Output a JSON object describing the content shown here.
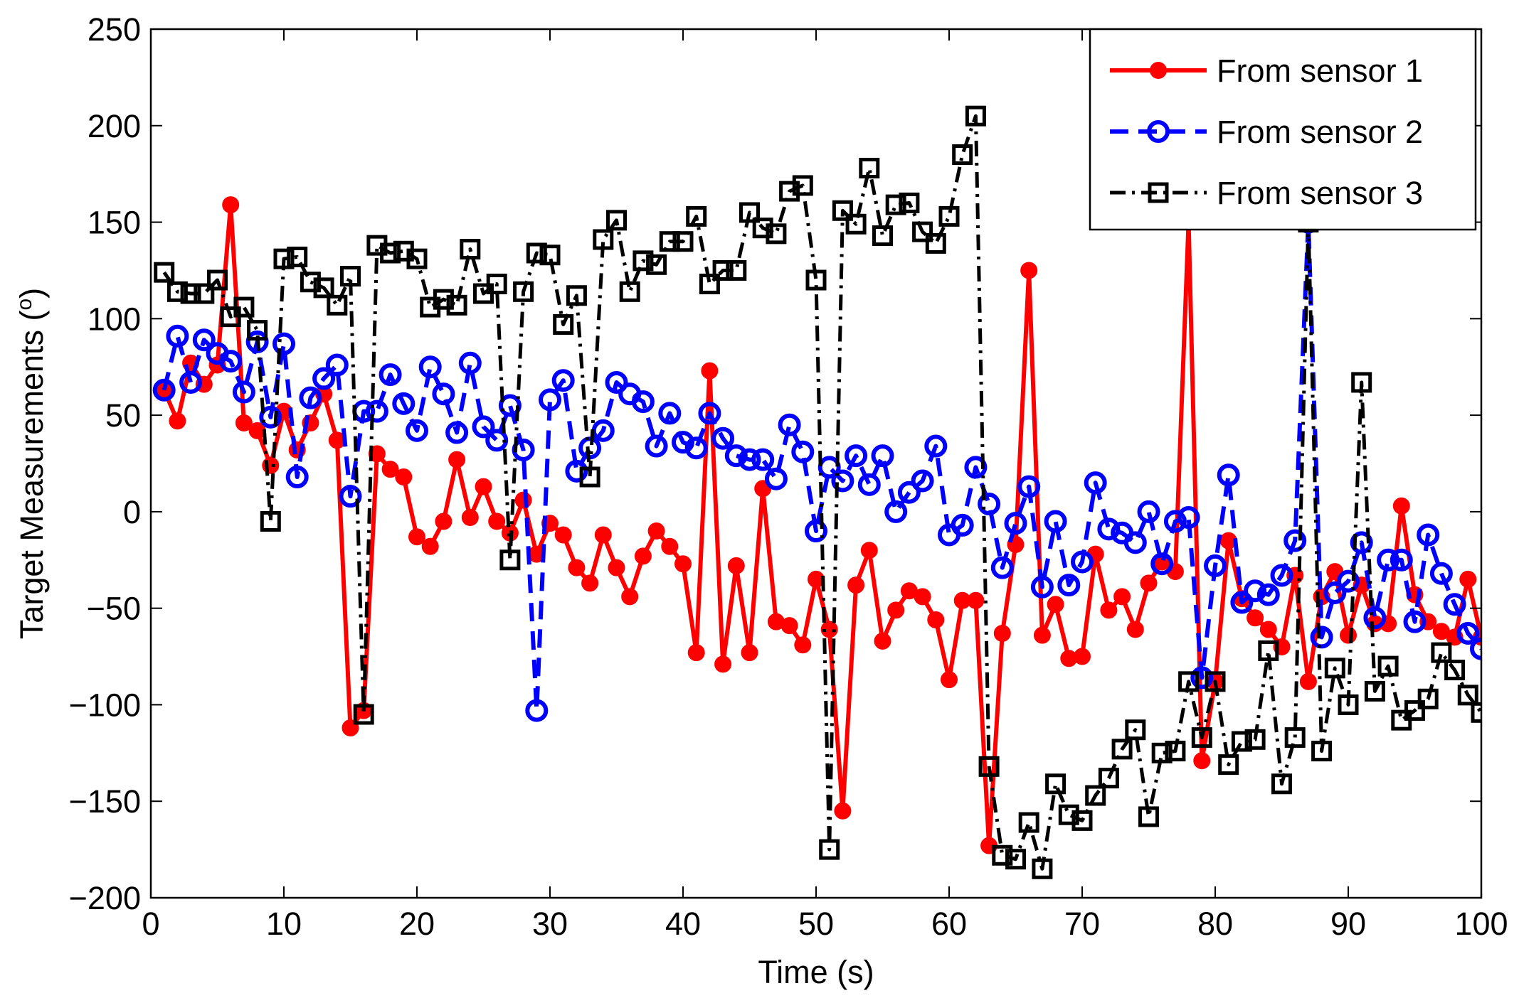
{
  "chart_data": {
    "type": "line",
    "title": "",
    "xlabel": "Time (s)",
    "ylabel": "Target Measurements (°)",
    "ylabel_main": "Target Measurements (",
    "ylabel_sup": "o",
    "ylabel_end": ")",
    "xlim": [
      0,
      100
    ],
    "ylim": [
      -200,
      250
    ],
    "xticks": [
      0,
      10,
      20,
      30,
      40,
      50,
      60,
      70,
      80,
      90,
      100
    ],
    "yticks": [
      -200,
      -150,
      -100,
      -50,
      0,
      50,
      100,
      150,
      200,
      250
    ],
    "xtick_labels": [
      "0",
      "10",
      "20",
      "30",
      "40",
      "50",
      "60",
      "70",
      "80",
      "90",
      "100"
    ],
    "ytick_labels": [
      "−200",
      "−150",
      "−100",
      "−50",
      "0",
      "50",
      "100",
      "150",
      "200",
      "250"
    ],
    "grid": false,
    "legend_position": "top-right",
    "x": [
      1,
      2,
      3,
      4,
      5,
      6,
      7,
      8,
      9,
      10,
      11,
      12,
      13,
      14,
      15,
      16,
      17,
      18,
      19,
      20,
      21,
      22,
      23,
      24,
      25,
      26,
      27,
      28,
      29,
      30,
      31,
      32,
      33,
      34,
      35,
      36,
      37,
      38,
      39,
      40,
      41,
      42,
      43,
      44,
      45,
      46,
      47,
      48,
      49,
      50,
      51,
      52,
      53,
      54,
      55,
      56,
      57,
      58,
      59,
      60,
      61,
      62,
      63,
      64,
      65,
      66,
      67,
      68,
      69,
      70,
      71,
      72,
      73,
      74,
      75,
      76,
      77,
      78,
      79,
      80,
      81,
      82,
      83,
      84,
      85,
      86,
      87,
      88,
      89,
      90,
      91,
      92,
      93,
      94,
      95,
      96,
      97,
      98,
      99,
      100
    ],
    "series": [
      {
        "name": "From sensor 1",
        "color": "#ff0000",
        "linestyle": "solid",
        "marker": "dot",
        "values": [
          63,
          47,
          77,
          66,
          76,
          159,
          46,
          42,
          24,
          52,
          32,
          46,
          61,
          37,
          -112,
          -103,
          30,
          22,
          18,
          -13,
          -18,
          -5,
          27,
          -3,
          13,
          -5,
          -11,
          6,
          -22,
          -6,
          -12,
          -29,
          -37,
          -12,
          -29,
          -44,
          -23,
          -10,
          -18,
          -27,
          -73,
          73,
          -79,
          -28,
          -73,
          12,
          -57,
          -59,
          -69,
          -35,
          -61,
          -155,
          -38,
          -20,
          -67,
          -51,
          -41,
          -44,
          -56,
          -87,
          -46,
          -46,
          -173,
          -63,
          -17,
          125,
          -64,
          -48,
          -76,
          -75,
          -22,
          -51,
          -44,
          -61,
          -37,
          -26,
          -31,
          150,
          -129,
          -88,
          -15,
          -45,
          -55,
          -61,
          -70,
          -33,
          -88,
          -44,
          -31,
          -64,
          -38,
          -58,
          -58,
          3,
          -43,
          -57,
          -62,
          -65,
          -35,
          -65
        ]
      },
      {
        "name": "From sensor 2",
        "color": "#0000ff",
        "linestyle": "dashed",
        "marker": "circle",
        "values": [
          63,
          91,
          67,
          89,
          82,
          78,
          62,
          88,
          49,
          87,
          18,
          59,
          69,
          76,
          8,
          52,
          52,
          71,
          56,
          42,
          75,
          61,
          41,
          77,
          44,
          37,
          55,
          32,
          -103,
          58,
          68,
          21,
          33,
          42,
          67,
          61,
          57,
          34,
          51,
          36,
          33,
          51,
          38,
          29,
          27,
          27,
          17,
          45,
          31,
          -10,
          23,
          16,
          29,
          14,
          29,
          0,
          10,
          16,
          34,
          -12,
          -7,
          23,
          4,
          -29,
          -6,
          13,
          -39,
          -5,
          -38,
          -26,
          15,
          -9,
          -11,
          -16,
          0,
          -27,
          -5,
          -3,
          -86,
          -28,
          19,
          -47,
          -41,
          -43,
          -33,
          -15,
          150,
          -65,
          -42,
          -36,
          -16,
          -55,
          -25,
          -25,
          -57,
          -12,
          -32,
          -48,
          -63,
          -71
        ]
      },
      {
        "name": "From sensor 3",
        "color": "#000000",
        "linestyle": "dashdot",
        "marker": "square",
        "values": [
          124,
          114,
          113,
          113,
          120,
          101,
          106,
          94,
          -5,
          131,
          132,
          119,
          116,
          107,
          122,
          -105,
          138,
          134,
          135,
          131,
          106,
          110,
          107,
          136,
          113,
          118,
          -25,
          114,
          134,
          133,
          97,
          112,
          18,
          141,
          151,
          114,
          130,
          128,
          140,
          140,
          153,
          118,
          125,
          125,
          155,
          147,
          144,
          166,
          169,
          120,
          -175,
          156,
          149,
          178,
          143,
          159,
          160,
          145,
          139,
          153,
          185,
          205,
          -132,
          -178,
          -180,
          -161,
          -185,
          -141,
          -157,
          -160,
          -147,
          -138,
          -123,
          -113,
          -158,
          -125,
          -124,
          -88,
          -117,
          -88,
          -131,
          -119,
          -118,
          -72,
          -141,
          -117,
          150,
          -124,
          -81,
          -100,
          67,
          -93,
          -80,
          -108,
          -103,
          -97,
          -73,
          -82,
          -95,
          -104
        ]
      }
    ]
  }
}
